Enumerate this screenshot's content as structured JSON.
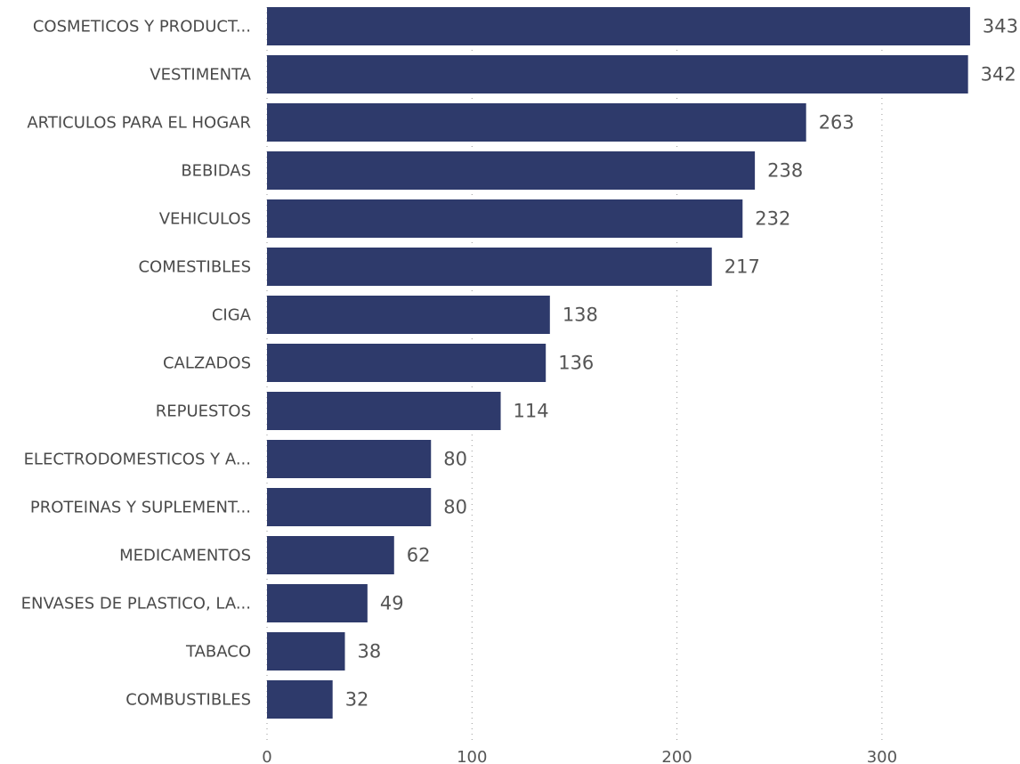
{
  "chart_data": {
    "type": "bar",
    "orientation": "horizontal",
    "title": "",
    "xlabel": "",
    "ylabel": "",
    "categories": [
      "COSMETICOS Y PRODUCT...",
      "VESTIMENTA",
      "ARTICULOS PARA EL HOGAR",
      "BEBIDAS",
      "VEHICULOS",
      "COMESTIBLES",
      "CIGA",
      "CALZADOS",
      "REPUESTOS",
      "ELECTRODOMESTICOS Y A...",
      "PROTEINAS Y SUPLEMENT...",
      "MEDICAMENTOS",
      "ENVASES DE PLASTICO, LA...",
      "TABACO",
      "COMBUSTIBLES"
    ],
    "values": [
      343,
      342,
      263,
      238,
      232,
      217,
      138,
      136,
      114,
      80,
      80,
      62,
      49,
      38,
      32
    ],
    "value_labels": [
      "343",
      "342",
      "263",
      "238",
      "232",
      "217",
      "138",
      "136",
      "114",
      "80",
      "80",
      "62",
      "49",
      "38",
      "32"
    ],
    "xlim": [
      0,
      343
    ],
    "x_ticks": [
      0,
      100,
      200,
      300
    ],
    "x_tick_labels": [
      "0",
      "100",
      "200",
      "300"
    ],
    "grid": "vertical dotted",
    "legend": "none",
    "bar_color": "#2e3a6b"
  }
}
